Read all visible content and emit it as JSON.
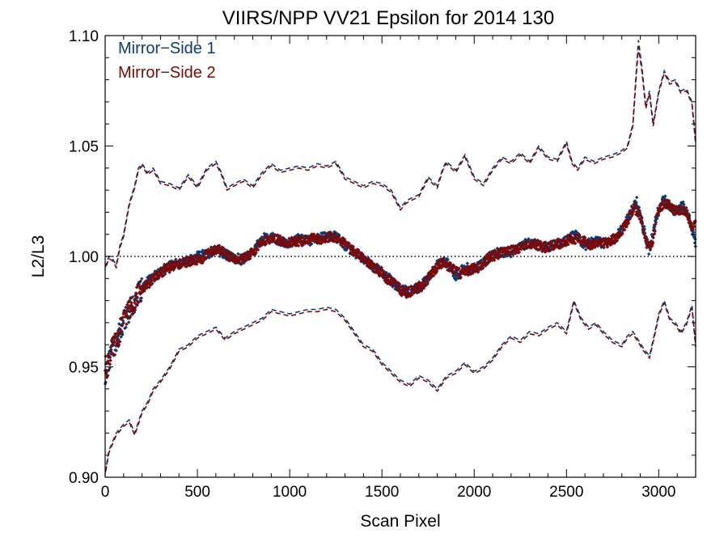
{
  "chart_data": {
    "type": "scatter",
    "title": "VIIRS/NPP VV21 Epsilon for 2014 130",
    "xlabel": "Scan Pixel",
    "ylabel": "L2/L3",
    "xlim": [
      0,
      3200
    ],
    "ylim": [
      0.9,
      1.1
    ],
    "xticks": [
      0,
      500,
      1000,
      1500,
      2000,
      2500,
      3000
    ],
    "xtick_labels": [
      "0",
      "500",
      "1000",
      "1500",
      "2000",
      "2500",
      "3000"
    ],
    "yticks": [
      0.9,
      0.95,
      1.0,
      1.05,
      1.1
    ],
    "ytick_labels": [
      "0.90",
      "0.95",
      "1.00",
      "1.05",
      "1.10"
    ],
    "reference_line": 1.0,
    "legend_position": "top-left",
    "colors": {
      "ms1": "#0b3a78",
      "ms2": "#7a0a0a",
      "reference": "#000000"
    },
    "mean_profile": {
      "x": [
        0,
        30,
        60,
        100,
        150,
        200,
        250,
        300,
        350,
        400,
        450,
        500,
        550,
        600,
        650,
        700,
        750,
        800,
        850,
        900,
        950,
        1000,
        1050,
        1100,
        1150,
        1200,
        1250,
        1300,
        1350,
        1400,
        1450,
        1500,
        1550,
        1600,
        1650,
        1700,
        1750,
        1800,
        1850,
        1900,
        1950,
        2000,
        2050,
        2100,
        2150,
        2200,
        2250,
        2300,
        2350,
        2400,
        2450,
        2500,
        2550,
        2600,
        2650,
        2700,
        2750,
        2800,
        2850,
        2880,
        2900,
        2930,
        2950,
        2980,
        3000,
        3030,
        3060,
        3100,
        3130,
        3160,
        3200
      ],
      "y": [
        0.95,
        0.955,
        0.962,
        0.97,
        0.98,
        0.986,
        0.99,
        0.993,
        0.995,
        0.997,
        0.998,
        0.999,
        1.0,
        1.002,
        1.001,
        0.999,
        0.998,
        1.002,
        1.007,
        1.008,
        1.006,
        1.006,
        1.007,
        1.007,
        1.008,
        1.009,
        1.008,
        1.005,
        1.002,
        0.999,
        0.996,
        0.993,
        0.988,
        0.984,
        0.985,
        0.986,
        0.99,
        0.996,
        0.997,
        0.992,
        0.995,
        0.994,
        0.996,
        1.001,
        1.002,
        1.002,
        1.005,
        1.006,
        1.005,
        1.004,
        1.006,
        1.006,
        1.01,
        1.005,
        1.006,
        1.006,
        1.007,
        1.012,
        1.018,
        1.024,
        1.015,
        1.005,
        1.0,
        1.015,
        1.021,
        1.025,
        1.022,
        1.02,
        1.022,
        1.018,
        1.005
      ]
    },
    "series": [
      {
        "name": "Mirror-Side 1",
        "type": "scatter",
        "color": "#0b3a78",
        "x": [
          0,
          20,
          40,
          60,
          80,
          100,
          130,
          160,
          200,
          250,
          300,
          350,
          400,
          450,
          500,
          550,
          600,
          650,
          700,
          750,
          800,
          850,
          900,
          950,
          1000,
          1050,
          1100,
          1150,
          1200,
          1250,
          1300,
          1350,
          1400,
          1450,
          1500,
          1550,
          1600,
          1650,
          1700,
          1750,
          1800,
          1850,
          1900,
          1950,
          2000,
          2050,
          2100,
          2150,
          2200,
          2250,
          2300,
          2350,
          2400,
          2450,
          2500,
          2550,
          2600,
          2650,
          2700,
          2750,
          2800,
          2850,
          2880,
          2920,
          2950,
          2980,
          3000,
          3030,
          3060,
          3100,
          3130,
          3160,
          3200
        ],
        "y": [
          0.946,
          0.952,
          0.958,
          0.962,
          0.966,
          0.971,
          0.975,
          0.98,
          0.986,
          0.99,
          0.993,
          0.996,
          0.997,
          0.998,
          1.0,
          1.001,
          1.003,
          1.001,
          0.999,
          0.999,
          1.002,
          1.008,
          1.009,
          1.007,
          1.006,
          1.008,
          1.007,
          1.008,
          1.009,
          1.009,
          1.005,
          1.002,
          0.999,
          0.996,
          0.993,
          0.989,
          0.985,
          0.984,
          0.986,
          0.99,
          0.996,
          0.998,
          0.991,
          0.995,
          0.994,
          0.997,
          1.001,
          1.002,
          1.002,
          1.005,
          1.006,
          1.005,
          1.004,
          1.006,
          1.007,
          1.01,
          1.005,
          1.007,
          1.006,
          1.007,
          1.012,
          1.02,
          1.025,
          1.012,
          1.002,
          1.016,
          1.021,
          1.026,
          1.022,
          1.02,
          1.023,
          1.019,
          1.006
        ]
      },
      {
        "name": "Mirror-Side 2",
        "type": "scatter",
        "color": "#7a0a0a",
        "x": [
          10,
          30,
          50,
          70,
          90,
          115,
          145,
          180,
          225,
          275,
          325,
          375,
          425,
          475,
          525,
          575,
          625,
          675,
          725,
          775,
          825,
          875,
          925,
          975,
          1025,
          1075,
          1125,
          1175,
          1225,
          1275,
          1325,
          1375,
          1425,
          1475,
          1525,
          1575,
          1625,
          1675,
          1725,
          1775,
          1825,
          1875,
          1925,
          1975,
          2025,
          2075,
          2125,
          2175,
          2225,
          2275,
          2325,
          2375,
          2425,
          2475,
          2525,
          2575,
          2625,
          2675,
          2725,
          2775,
          2825,
          2865,
          2900,
          2935,
          2965,
          2990,
          3015,
          3045,
          3080,
          3115,
          3145,
          3180
        ],
        "y": [
          0.95,
          0.956,
          0.96,
          0.963,
          0.969,
          0.974,
          0.978,
          0.983,
          0.987,
          0.991,
          0.994,
          0.996,
          0.997,
          0.998,
          0.999,
          1.002,
          1.003,
          1.0,
          0.998,
          1.0,
          1.004,
          1.008,
          1.008,
          1.006,
          1.007,
          1.007,
          1.008,
          1.008,
          1.009,
          1.007,
          1.004,
          1.001,
          0.997,
          0.994,
          0.99,
          0.987,
          0.983,
          0.985,
          0.987,
          0.993,
          0.997,
          0.995,
          0.992,
          0.994,
          0.995,
          0.999,
          1.001,
          1.002,
          1.003,
          1.005,
          1.006,
          1.004,
          1.005,
          1.006,
          1.008,
          1.008,
          1.005,
          1.007,
          1.006,
          1.009,
          1.015,
          1.022,
          1.018,
          1.006,
          1.005,
          1.018,
          1.023,
          1.024,
          1.021,
          1.021,
          1.021,
          1.014
        ]
      },
      {
        "name": "",
        "type": "line",
        "style": "dashed",
        "color": "#0b3a78",
        "x": [
          0,
          20,
          40,
          60,
          80,
          100,
          130,
          160,
          180,
          200,
          230,
          260,
          300,
          350,
          400,
          450,
          500,
          550,
          600,
          630,
          660,
          700,
          750,
          800,
          850,
          900,
          950,
          1000,
          1050,
          1100,
          1150,
          1200,
          1250,
          1300,
          1350,
          1400,
          1450,
          1500,
          1550,
          1600,
          1630,
          1650,
          1700,
          1750,
          1800,
          1830,
          1850,
          1900,
          1950,
          2000,
          2050,
          2100,
          2150,
          2200,
          2250,
          2300,
          2350,
          2400,
          2450,
          2500,
          2530,
          2560,
          2600,
          2650,
          2700,
          2750,
          2800,
          2830,
          2860,
          2875,
          2890,
          2910,
          2930,
          2950,
          2970,
          3000,
          3030,
          3060,
          3090,
          3120,
          3150,
          3180,
          3200
        ],
        "y": [
          0.995,
          1.0,
          0.999,
          0.996,
          1.005,
          1.01,
          1.024,
          1.032,
          1.04,
          1.042,
          1.038,
          1.04,
          1.034,
          1.033,
          1.031,
          1.037,
          1.032,
          1.04,
          1.043,
          1.038,
          1.031,
          1.033,
          1.035,
          1.032,
          1.038,
          1.042,
          1.039,
          1.04,
          1.041,
          1.04,
          1.042,
          1.041,
          1.043,
          1.036,
          1.034,
          1.032,
          1.034,
          1.033,
          1.03,
          1.022,
          1.025,
          1.026,
          1.028,
          1.036,
          1.032,
          1.04,
          1.043,
          1.039,
          1.046,
          1.036,
          1.033,
          1.04,
          1.045,
          1.043,
          1.047,
          1.043,
          1.05,
          1.045,
          1.044,
          1.052,
          1.043,
          1.04,
          1.045,
          1.043,
          1.045,
          1.046,
          1.048,
          1.05,
          1.06,
          1.08,
          1.098,
          1.085,
          1.068,
          1.075,
          1.06,
          1.075,
          1.084,
          1.079,
          1.08,
          1.075,
          1.076,
          1.07,
          1.052
        ]
      },
      {
        "name": "",
        "type": "line",
        "style": "dashed",
        "color": "#7a0a0a",
        "x": [
          0,
          20,
          40,
          60,
          80,
          100,
          130,
          160,
          180,
          200,
          230,
          260,
          300,
          350,
          400,
          450,
          500,
          550,
          600,
          630,
          660,
          700,
          750,
          800,
          850,
          900,
          950,
          1000,
          1050,
          1100,
          1150,
          1200,
          1250,
          1300,
          1350,
          1400,
          1450,
          1500,
          1550,
          1600,
          1630,
          1650,
          1700,
          1750,
          1800,
          1830,
          1850,
          1900,
          1950,
          2000,
          2050,
          2100,
          2150,
          2200,
          2250,
          2300,
          2350,
          2400,
          2450,
          2500,
          2530,
          2560,
          2600,
          2650,
          2700,
          2750,
          2800,
          2830,
          2860,
          2875,
          2890,
          2910,
          2930,
          2950,
          2970,
          3000,
          3030,
          3060,
          3090,
          3120,
          3150,
          3180,
          3200
        ],
        "y": [
          0.994,
          0.999,
          0.998,
          0.995,
          1.004,
          1.009,
          1.023,
          1.031,
          1.039,
          1.041,
          1.037,
          1.039,
          1.033,
          1.032,
          1.03,
          1.036,
          1.031,
          1.039,
          1.042,
          1.037,
          1.03,
          1.032,
          1.034,
          1.031,
          1.037,
          1.041,
          1.038,
          1.039,
          1.04,
          1.039,
          1.041,
          1.04,
          1.042,
          1.035,
          1.033,
          1.031,
          1.033,
          1.032,
          1.029,
          1.021,
          1.024,
          1.025,
          1.027,
          1.035,
          1.031,
          1.039,
          1.042,
          1.038,
          1.045,
          1.035,
          1.032,
          1.039,
          1.044,
          1.042,
          1.046,
          1.042,
          1.049,
          1.044,
          1.043,
          1.051,
          1.042,
          1.039,
          1.044,
          1.042,
          1.044,
          1.045,
          1.047,
          1.049,
          1.059,
          1.078,
          1.095,
          1.083,
          1.067,
          1.074,
          1.059,
          1.074,
          1.083,
          1.078,
          1.079,
          1.074,
          1.075,
          1.069,
          1.051
        ]
      },
      {
        "name": "",
        "type": "line",
        "style": "dashed",
        "color": "#0b3a78",
        "x": [
          0,
          20,
          40,
          60,
          80,
          100,
          130,
          160,
          200,
          230,
          260,
          300,
          350,
          400,
          450,
          500,
          550,
          600,
          650,
          700,
          750,
          800,
          850,
          900,
          950,
          1000,
          1050,
          1100,
          1150,
          1200,
          1250,
          1300,
          1350,
          1400,
          1450,
          1500,
          1550,
          1600,
          1650,
          1700,
          1750,
          1800,
          1850,
          1900,
          1950,
          2000,
          2050,
          2100,
          2150,
          2200,
          2250,
          2300,
          2350,
          2400,
          2450,
          2500,
          2540,
          2580,
          2620,
          2660,
          2700,
          2750,
          2800,
          2830,
          2860,
          2890,
          2920,
          2950,
          2980,
          3000,
          3030,
          3060,
          3090,
          3120,
          3150,
          3180,
          3200
        ],
        "y": [
          0.902,
          0.912,
          0.916,
          0.92,
          0.922,
          0.924,
          0.926,
          0.92,
          0.93,
          0.934,
          0.94,
          0.944,
          0.95,
          0.958,
          0.96,
          0.964,
          0.966,
          0.968,
          0.963,
          0.966,
          0.968,
          0.97,
          0.972,
          0.976,
          0.975,
          0.974,
          0.975,
          0.976,
          0.976,
          0.977,
          0.976,
          0.972,
          0.966,
          0.96,
          0.958,
          0.952,
          0.948,
          0.944,
          0.942,
          0.946,
          0.944,
          0.94,
          0.946,
          0.948,
          0.952,
          0.948,
          0.95,
          0.954,
          0.96,
          0.964,
          0.962,
          0.966,
          0.965,
          0.968,
          0.97,
          0.966,
          0.98,
          0.972,
          0.968,
          0.97,
          0.966,
          0.962,
          0.96,
          0.964,
          0.966,
          0.962,
          0.958,
          0.955,
          0.966,
          0.974,
          0.98,
          0.972,
          0.97,
          0.966,
          0.97,
          0.978,
          0.96
        ]
      },
      {
        "name": "",
        "type": "line",
        "style": "dashed",
        "color": "#7a0a0a",
        "x": [
          0,
          20,
          40,
          60,
          80,
          100,
          130,
          160,
          200,
          230,
          260,
          300,
          350,
          400,
          450,
          500,
          550,
          600,
          650,
          700,
          750,
          800,
          850,
          900,
          950,
          1000,
          1050,
          1100,
          1150,
          1200,
          1250,
          1300,
          1350,
          1400,
          1450,
          1500,
          1550,
          1600,
          1650,
          1700,
          1750,
          1800,
          1850,
          1900,
          1950,
          2000,
          2050,
          2100,
          2150,
          2200,
          2250,
          2300,
          2350,
          2400,
          2450,
          2500,
          2540,
          2580,
          2620,
          2660,
          2700,
          2750,
          2800,
          2830,
          2860,
          2890,
          2920,
          2950,
          2980,
          3000,
          3030,
          3060,
          3090,
          3120,
          3150,
          3180,
          3200
        ],
        "y": [
          0.901,
          0.911,
          0.915,
          0.919,
          0.921,
          0.923,
          0.925,
          0.919,
          0.929,
          0.933,
          0.939,
          0.943,
          0.949,
          0.957,
          0.959,
          0.963,
          0.965,
          0.967,
          0.962,
          0.965,
          0.967,
          0.969,
          0.971,
          0.975,
          0.974,
          0.973,
          0.974,
          0.975,
          0.975,
          0.976,
          0.975,
          0.971,
          0.965,
          0.959,
          0.957,
          0.951,
          0.947,
          0.943,
          0.941,
          0.945,
          0.943,
          0.939,
          0.945,
          0.947,
          0.951,
          0.947,
          0.949,
          0.953,
          0.959,
          0.963,
          0.961,
          0.965,
          0.964,
          0.967,
          0.969,
          0.965,
          0.979,
          0.971,
          0.967,
          0.969,
          0.965,
          0.961,
          0.959,
          0.963,
          0.965,
          0.961,
          0.957,
          0.954,
          0.965,
          0.973,
          0.979,
          0.971,
          0.969,
          0.965,
          0.969,
          0.977,
          0.959
        ]
      }
    ],
    "legend": [
      {
        "label": "Mirror−Side 1",
        "color": "#0b3a78"
      },
      {
        "label": "Mirror−Side 2",
        "color": "#7a0a0a"
      }
    ]
  }
}
